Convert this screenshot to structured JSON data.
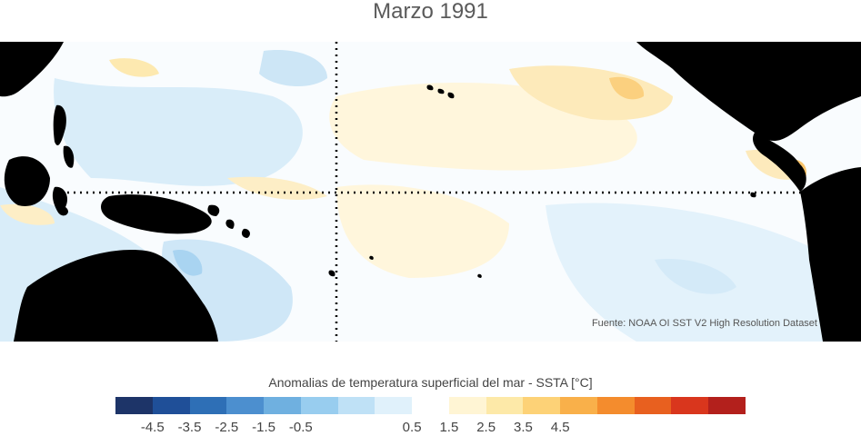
{
  "title": "Marzo 1991",
  "source": "Fuente: NOAA OI SST V2 High Resolution Dataset",
  "colorbar": {
    "label": "Anomalias de temperatura superficial del mar - SSTA  [°C]",
    "ticks": [
      "-4.5",
      "-3.5",
      "-2.5",
      "-1.5",
      "-0.5",
      "0.5",
      "1.5",
      "2.5",
      "3.5",
      "4.5"
    ],
    "colors": [
      "#1d3468",
      "#1f4f98",
      "#2e6fb6",
      "#4c8fcf",
      "#6fb0e0",
      "#98cdef",
      "#bfe1f6",
      "#e0f1fb",
      "#ffffff",
      "#fff5d4",
      "#fde9a8",
      "#fdd277",
      "#f9b04a",
      "#f48c2d",
      "#e8601f",
      "#d9361d",
      "#b3201c"
    ]
  },
  "map": {
    "land_color": "#000000",
    "reference_lines": "dotted"
  }
}
